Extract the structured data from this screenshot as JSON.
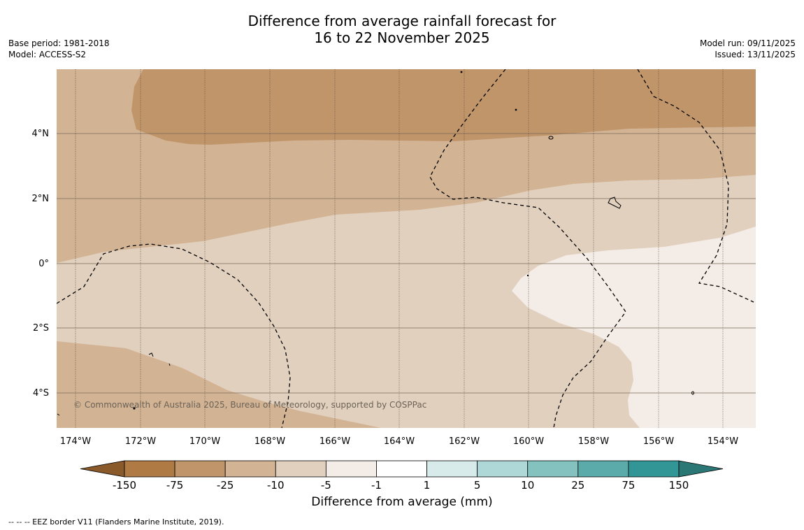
{
  "title": {
    "line1": "Difference from average rainfall forecast for",
    "line2": "16 to 22 November 2025"
  },
  "meta_left": {
    "base_period": "Base period: 1981-2018",
    "model": "Model: ACCESS-S2"
  },
  "meta_right": {
    "model_run": "Model run: 09/11/2025",
    "issued": "Issued: 13/11/2025"
  },
  "map": {
    "lat_labels": [
      "4°N",
      "2°N",
      "0°",
      "2°S",
      "4°S"
    ],
    "lon_labels": [
      "174°W",
      "172°W",
      "170°W",
      "168°W",
      "166°W",
      "164°W",
      "162°W",
      "160°W",
      "158°W",
      "156°W",
      "154°W"
    ],
    "copyright": "© Commonwealth of Australia 2025, Bureau of Meteorology, supported by COSPPac"
  },
  "colorbar": {
    "title": "Difference from average (mm)",
    "tick_labels": [
      "-150",
      "-75",
      "-25",
      "-10",
      "-5",
      "-1",
      "1",
      "5",
      "10",
      "25",
      "75",
      "150"
    ],
    "colors": [
      "#8b5a2b",
      "#b07a45",
      "#c1956a",
      "#d2b394",
      "#e2d0bf",
      "#f4ece6",
      "#ffffff",
      "#d6ebea",
      "#add8d7",
      "#84c2c0",
      "#5aabaa",
      "#319695",
      "#2a7776"
    ]
  },
  "footer": {
    "eez_note": "--  --  -- EEZ border V11 (Flanders Marine Institute, 2019)."
  }
}
